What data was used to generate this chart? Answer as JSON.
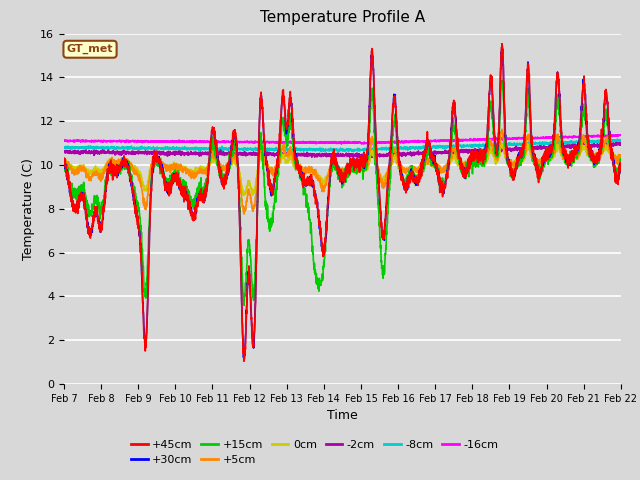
{
  "title": "Temperature Profile A",
  "xlabel": "Time",
  "ylabel": "Temperature (C)",
  "ylim": [
    0,
    16
  ],
  "xlim": [
    0,
    15
  ],
  "background_color": "#d8d8d8",
  "legend_label": "GT_met",
  "series": {
    "+45cm": {
      "color": "#ff0000",
      "lw": 1.2
    },
    "+30cm": {
      "color": "#0000ff",
      "lw": 1.2
    },
    "+15cm": {
      "color": "#00cc00",
      "lw": 1.2
    },
    "+5cm": {
      "color": "#ff8800",
      "lw": 1.2
    },
    "0cm": {
      "color": "#cccc00",
      "lw": 1.2
    },
    "-2cm": {
      "color": "#aa00aa",
      "lw": 1.2
    },
    "-8cm": {
      "color": "#00cccc",
      "lw": 1.2
    },
    "-16cm": {
      "color": "#ff00ff",
      "lw": 1.2
    }
  },
  "xtick_labels": [
    "Feb 7",
    "Feb 8",
    "Feb 9",
    "Feb 10",
    "Feb 11",
    "Feb 12",
    "Feb 13",
    "Feb 14",
    "Feb 15",
    "Feb 16",
    "Feb 17",
    "Feb 18",
    "Feb 19",
    "Feb 20",
    "Feb 21",
    "Feb 22"
  ],
  "xtick_positions": [
    0,
    1,
    2,
    3,
    4,
    5,
    6,
    7,
    8,
    9,
    10,
    11,
    12,
    13,
    14,
    15
  ]
}
